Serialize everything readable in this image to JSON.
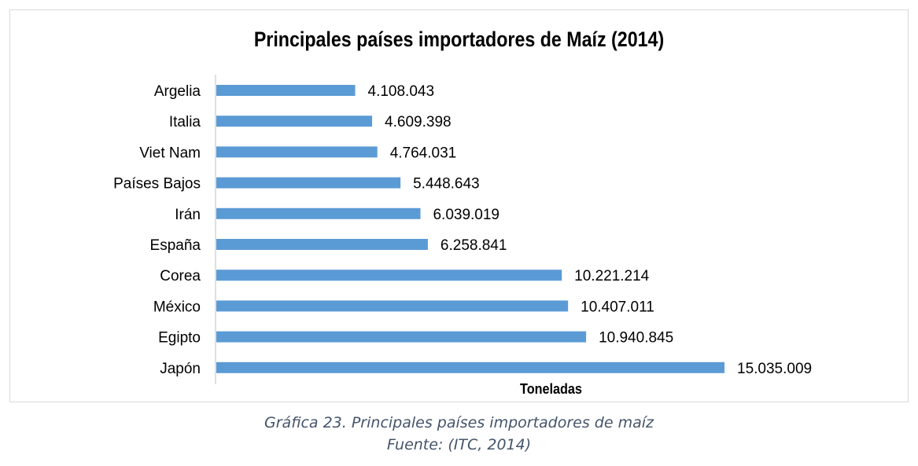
{
  "caption": {
    "line1": "Gráfica 23. Principales países importadores de maíz",
    "line2": "Fuente: (ITC, 2014)"
  },
  "chart_data": {
    "type": "bar",
    "orientation": "horizontal",
    "title": "Principales países importadores de Maíz (2014)",
    "xlabel": "Toneladas",
    "ylabel": "",
    "categories": [
      "Argelia",
      "Italia",
      "Viet Nam",
      "Países Bajos",
      "Irán",
      "España",
      "Corea",
      "México",
      "Egipto",
      "Japón"
    ],
    "values": [
      4108043,
      4609398,
      4764031,
      5448643,
      6039019,
      6258841,
      10221214,
      10407011,
      10940845,
      15035009
    ],
    "value_labels": [
      "4.108.043",
      "4.609.398",
      "4.764.031",
      "5.448.643",
      "6.039.019",
      "6.258.841",
      "10.221.214",
      "10.407.011",
      "10.940.845",
      "15.035.009"
    ],
    "xlim": [
      0,
      17000000
    ],
    "grid": false,
    "legend": "none",
    "bar_color": "#5b9bd5"
  }
}
